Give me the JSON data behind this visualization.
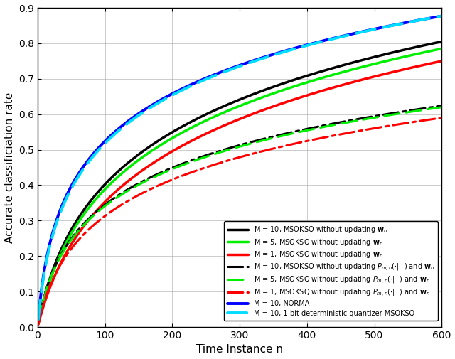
{
  "xlabel": "Time Instance n",
  "ylabel": "Accurate classificiation rate",
  "xlim": [
    0,
    600
  ],
  "ylim": [
    0,
    0.9
  ],
  "yticks": [
    0,
    0.1,
    0.2,
    0.3,
    0.4,
    0.5,
    0.6,
    0.7,
    0.8,
    0.9
  ],
  "xticks": [
    0,
    100,
    200,
    300,
    400,
    500,
    600
  ],
  "curve_params": [
    {
      "color": "#000000",
      "linestyle": "solid",
      "lw": 2.5,
      "asym": 0.805,
      "k": 0.04,
      "label": "M = 10, MSOKSQ without updating $\\mathbf{w}_n$"
    },
    {
      "color": "#00ee00",
      "linestyle": "solid",
      "lw": 2.5,
      "asym": 0.785,
      "k": 0.038,
      "label": "M = 5, MSOKSQ without updating $\\mathbf{w}_n$"
    },
    {
      "color": "#ff0000",
      "linestyle": "solid",
      "lw": 2.5,
      "asym": 0.75,
      "k": 0.03,
      "label": "M = 1, MSOKSQ without updating $\\mathbf{w}_n$"
    },
    {
      "color": "#000000",
      "linestyle": "dashdot",
      "lw": 2.2,
      "asym": 0.624,
      "k": 0.07,
      "label": "M = 10, MSOKSQ without updating $P_{m,n}(\\cdot|\\cdot)$ and $\\mathbf{w}_n$"
    },
    {
      "color": "#00ee00",
      "linestyle": "dashed",
      "lw": 2.2,
      "asym": 0.62,
      "k": 0.068,
      "label": "M = 5, MSOKSQ without updating $P_{m,n}(\\cdot|\\cdot)$ and $\\mathbf{w}_n$"
    },
    {
      "color": "#ff0000",
      "linestyle": "dashdot",
      "lw": 2.2,
      "asym": 0.59,
      "k": 0.055,
      "label": "M = 1, MSOKSQ without updating $P_{m,n}(\\cdot|\\cdot)$ and $\\mathbf{w}_n$"
    },
    {
      "color": "#0000ff",
      "linestyle": "solid",
      "lw": 2.8,
      "asym": 0.877,
      "k": 0.12,
      "label": "M = 10, NORMA"
    },
    {
      "color": "#00ddff",
      "linestyle": "dashed",
      "lw": 2.8,
      "asym": 0.877,
      "k": 0.11,
      "label": "M = 10, 1-bit deterministic quantizer MSOKSQ"
    }
  ]
}
